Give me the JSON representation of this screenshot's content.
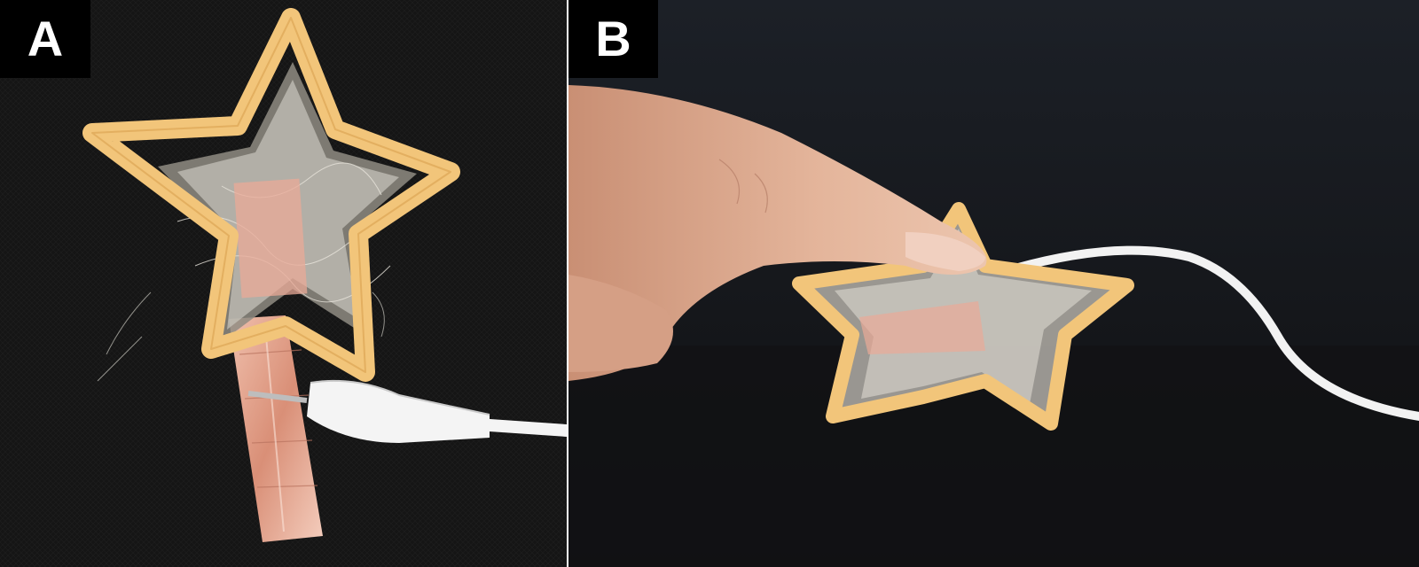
{
  "panels": [
    {
      "label": "A",
      "background_color": "#161616",
      "subject": "star-frame-sensor-with-copper-tape-and-alligator-clip"
    },
    {
      "label": "B",
      "background_color": "#17191e",
      "subject": "finger-pressing-star-frame-sensor"
    }
  ],
  "colors": {
    "star_frame": "#f2c57a",
    "star_frame_edge": "#d8a04e",
    "fiber_fill": "#c9c6bd",
    "copper": "#e7a790",
    "clip": "#f4f4f4",
    "skin": "#e1b096",
    "label_bg": "#000000",
    "label_text": "#ffffff"
  }
}
